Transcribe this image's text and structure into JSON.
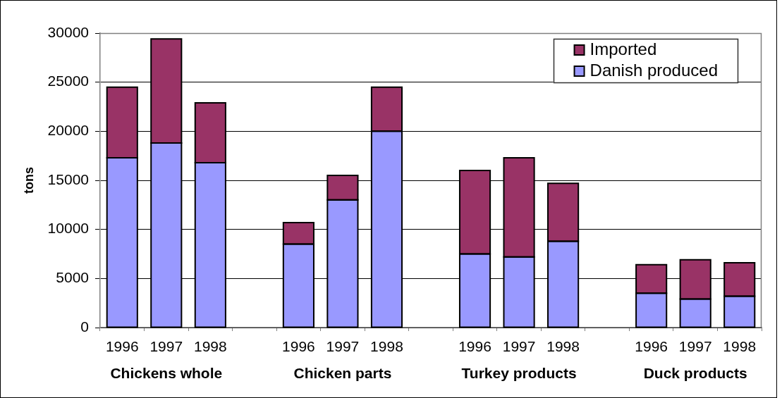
{
  "chart_data": {
    "type": "bar",
    "stacked": true,
    "ylabel": "tons",
    "categories": [
      "1996",
      "1997",
      "1998",
      null,
      "1996",
      "1997",
      "1998",
      null,
      "1996",
      "1997",
      "1998",
      null,
      "1996",
      "1997",
      "1998"
    ],
    "series": [
      {
        "name": "Danish produced",
        "color": "#9999ff",
        "values": [
          17300,
          18800,
          16800,
          null,
          8500,
          13000,
          20000,
          null,
          7500,
          7200,
          8800,
          null,
          3500,
          2900,
          3200
        ]
      },
      {
        "name": "Imported",
        "color": "#993366",
        "values": [
          7200,
          10600,
          6100,
          null,
          2200,
          2500,
          4500,
          null,
          8500,
          10100,
          5900,
          null,
          2900,
          4000,
          3400
        ]
      }
    ],
    "ylim": [
      0,
      30000
    ],
    "yticks": [
      0,
      5000,
      10000,
      15000,
      20000,
      25000,
      30000
    ],
    "grid": "y",
    "legend": "top right",
    "annotations": [
      "Chickens whole",
      "Chicken parts",
      "Turkey products",
      "Duck products"
    ]
  }
}
